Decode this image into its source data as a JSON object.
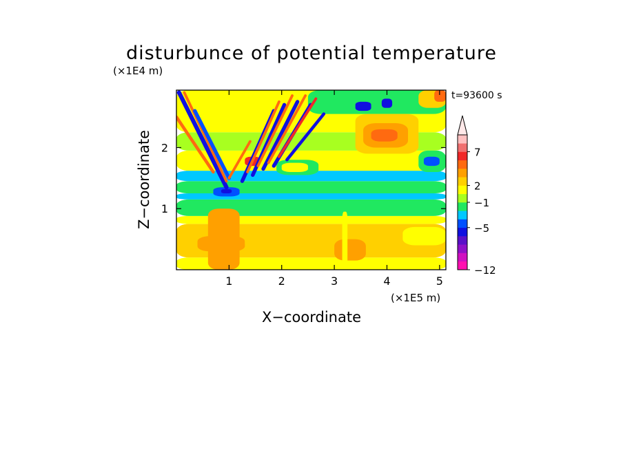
{
  "chart_data": {
    "type": "heatmap",
    "title": "disturbunce of potential temperature",
    "xlabel": "X−coordinate",
    "ylabel": "Z−coordinate",
    "x_unit": "(×1E5 m)",
    "y_unit": "(×1E4 m)",
    "time_label": "t=93600 s",
    "xlim": [
      0,
      5.12
    ],
    "ylim": [
      0,
      2.94
    ],
    "x_ticks": [
      "1",
      "2",
      "3",
      "4",
      "5"
    ],
    "y_ticks": [
      "1",
      "2"
    ],
    "colorbar": {
      "levels": [
        {
          "color": "#ff10b0"
        },
        {
          "color": "#d010c0"
        },
        {
          "color": "#9010c8"
        },
        {
          "color": "#5a10c8"
        },
        {
          "color": "#1010e0"
        },
        {
          "color": "#0050ff"
        },
        {
          "color": "#00c8ff"
        },
        {
          "color": "#20e860"
        },
        {
          "color": "#a8ff20"
        },
        {
          "color": "#ffff00"
        },
        {
          "color": "#ffd000"
        },
        {
          "color": "#ffa000"
        },
        {
          "color": "#ff6a10"
        },
        {
          "color": "#f02828"
        },
        {
          "color": "#f07070"
        },
        {
          "color": "#ffc0c0"
        }
      ],
      "tick_labels": [
        "7",
        "2",
        "−1",
        "−5",
        "−12"
      ],
      "extend": "max"
    },
    "regions": [
      {
        "x0": 0.0,
        "x1": 5.12,
        "z0": 0.0,
        "z1": 0.2,
        "level": 9
      },
      {
        "x0": 0.0,
        "x1": 5.12,
        "z0": 0.2,
        "z1": 0.75,
        "level": 10
      },
      {
        "x0": 0.0,
        "x1": 5.12,
        "z0": 0.75,
        "z1": 0.88,
        "level": 9
      },
      {
        "x0": 0.0,
        "x1": 5.12,
        "z0": 0.88,
        "z1": 1.15,
        "level": 7
      },
      {
        "x0": 0.0,
        "x1": 5.12,
        "z0": 1.15,
        "z1": 1.25,
        "level": 6
      },
      {
        "x0": 0.0,
        "x1": 5.12,
        "z0": 1.25,
        "z1": 1.45,
        "level": 7
      },
      {
        "x0": 0.0,
        "x1": 5.12,
        "z0": 1.45,
        "z1": 1.62,
        "level": 6
      },
      {
        "x0": 0.0,
        "x1": 5.12,
        "z0": 1.62,
        "z1": 1.95,
        "level": 9
      },
      {
        "x0": 0.0,
        "x1": 5.12,
        "z0": 1.95,
        "z1": 2.25,
        "level": 8
      },
      {
        "x0": 0.0,
        "x1": 5.12,
        "z0": 2.25,
        "z1": 2.94,
        "level": 9
      },
      {
        "x0": 2.5,
        "x1": 5.12,
        "z0": 2.55,
        "z1": 2.94,
        "level": 7
      },
      {
        "x0": 3.4,
        "x1": 4.6,
        "z0": 1.9,
        "z1": 2.55,
        "level": 10
      },
      {
        "x0": 3.55,
        "x1": 4.4,
        "z0": 2.0,
        "z1": 2.4,
        "level": 11
      },
      {
        "x0": 3.7,
        "x1": 4.2,
        "z0": 2.1,
        "z1": 2.3,
        "level": 12
      },
      {
        "x0": 4.6,
        "x1": 5.12,
        "z0": 1.6,
        "z1": 1.95,
        "level": 7
      },
      {
        "x0": 4.7,
        "x1": 5.0,
        "z0": 1.7,
        "z1": 1.85,
        "level": 5
      },
      {
        "x0": 1.9,
        "x1": 2.7,
        "z0": 1.55,
        "z1": 1.8,
        "level": 7
      },
      {
        "x0": 2.0,
        "x1": 2.5,
        "z0": 1.6,
        "z1": 1.75,
        "level": 9
      },
      {
        "x0": 3.4,
        "x1": 3.7,
        "z0": 2.6,
        "z1": 2.75,
        "level": 4
      },
      {
        "x0": 3.9,
        "x1": 4.1,
        "z0": 2.65,
        "z1": 2.8,
        "level": 4
      },
      {
        "x0": 4.6,
        "x1": 5.12,
        "z0": 2.65,
        "z1": 2.94,
        "level": 10
      },
      {
        "x0": 4.9,
        "x1": 5.12,
        "z0": 2.75,
        "z1": 2.94,
        "level": 12
      },
      {
        "x0": 0.4,
        "x1": 1.3,
        "z0": 0.3,
        "z1": 0.55,
        "level": 11
      },
      {
        "x0": 1.3,
        "x1": 1.8,
        "z0": 0.35,
        "z1": 0.6,
        "level": 10
      },
      {
        "x0": 3.0,
        "x1": 3.6,
        "z0": 0.15,
        "z1": 0.5,
        "level": 11
      },
      {
        "x0": 3.6,
        "x1": 4.3,
        "z0": 0.3,
        "z1": 0.6,
        "level": 10
      },
      {
        "x0": 4.3,
        "x1": 5.12,
        "z0": 0.4,
        "z1": 0.7,
        "level": 9
      },
      {
        "x0": 0.7,
        "x1": 1.2,
        "z0": 1.2,
        "z1": 1.35,
        "level": 5
      },
      {
        "x0": 0.85,
        "x1": 1.05,
        "z0": 1.25,
        "z1": 1.32,
        "level": 4
      },
      {
        "x0": 1.3,
        "x1": 1.6,
        "z0": 1.7,
        "z1": 1.85,
        "level": 13
      },
      {
        "x0": 0.6,
        "x1": 1.2,
        "z0": 0.0,
        "z1": 1.0,
        "level": 11
      },
      {
        "x0": 3.15,
        "x1": 3.25,
        "z0": 0.0,
        "z1": 0.95,
        "level": 9
      }
    ],
    "bands": [
      {
        "x0": 0.05,
        "z0": 2.9,
        "x1": 0.95,
        "z1": 1.35,
        "w": 0.08,
        "level": 4
      },
      {
        "x0": 0.15,
        "z0": 2.9,
        "x1": 0.95,
        "z1": 1.45,
        "w": 0.05,
        "level": 12
      },
      {
        "x0": 0.35,
        "z0": 2.6,
        "x1": 1.0,
        "z1": 1.5,
        "w": 0.07,
        "level": 5
      },
      {
        "x0": 0.0,
        "z0": 2.5,
        "x1": 0.7,
        "z1": 1.6,
        "w": 0.06,
        "level": 12
      },
      {
        "x0": 1.25,
        "z0": 1.45,
        "x1": 1.85,
        "z1": 2.6,
        "w": 0.07,
        "level": 4
      },
      {
        "x0": 1.45,
        "z0": 1.55,
        "x1": 2.05,
        "z1": 2.7,
        "w": 0.07,
        "level": 4
      },
      {
        "x0": 1.65,
        "z0": 1.65,
        "x1": 2.3,
        "z1": 2.75,
        "w": 0.07,
        "level": 4
      },
      {
        "x0": 1.85,
        "z0": 1.7,
        "x1": 2.55,
        "z1": 2.7,
        "w": 0.07,
        "level": 4
      },
      {
        "x0": 2.1,
        "z0": 1.8,
        "x1": 2.8,
        "z1": 2.55,
        "w": 0.06,
        "level": 4
      },
      {
        "x0": 1.35,
        "z0": 1.6,
        "x1": 1.95,
        "z1": 2.75,
        "w": 0.05,
        "level": 12
      },
      {
        "x0": 1.55,
        "z0": 1.7,
        "x1": 2.2,
        "z1": 2.85,
        "w": 0.05,
        "level": 12
      },
      {
        "x0": 1.75,
        "z0": 1.75,
        "x1": 2.45,
        "z1": 2.85,
        "w": 0.05,
        "level": 12
      },
      {
        "x0": 1.95,
        "z0": 1.85,
        "x1": 2.65,
        "z1": 2.8,
        "w": 0.05,
        "level": 13
      },
      {
        "x0": 1.0,
        "z0": 1.5,
        "x1": 1.4,
        "z1": 2.1,
        "w": 0.05,
        "level": 12
      }
    ]
  }
}
